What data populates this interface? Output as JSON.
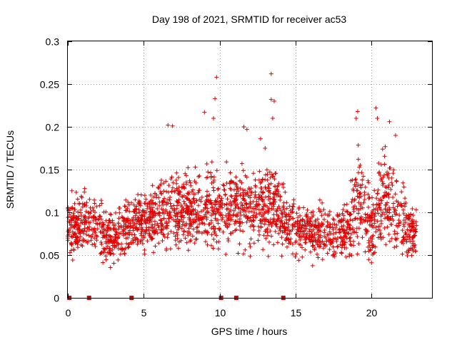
{
  "chart_data": {
    "type": "scatter",
    "title": "Day 198 of 2021, SRMTID for receiver ac53",
    "xlabel": "GPS time / hours",
    "ylabel": "SRMTID / TECUs",
    "xlim": [
      0,
      24
    ],
    "ylim": [
      0,
      0.3
    ],
    "x_ticks": [
      0,
      5,
      10,
      15,
      20
    ],
    "y_ticks": [
      0,
      0.05,
      0.1,
      0.15,
      0.2,
      0.25,
      0.3
    ],
    "x_tick_labels": [
      "0",
      "5",
      "10",
      "15",
      "20"
    ],
    "y_tick_labels": [
      "0",
      "0.05",
      "0.1",
      "0.15",
      "0.2",
      "0.25",
      "0.3"
    ],
    "grid": true,
    "marker": "plus",
    "series_color": "#e00000",
    "envelope": [
      {
        "x": 0.0,
        "low": 0.035,
        "high": 0.13
      },
      {
        "x": 1.0,
        "low": 0.04,
        "high": 0.135
      },
      {
        "x": 2.0,
        "low": 0.035,
        "high": 0.13
      },
      {
        "x": 2.5,
        "low": 0.025,
        "high": 0.11
      },
      {
        "x": 3.5,
        "low": 0.03,
        "high": 0.12
      },
      {
        "x": 4.5,
        "low": 0.04,
        "high": 0.14
      },
      {
        "x": 6.0,
        "low": 0.04,
        "high": 0.15
      },
      {
        "x": 7.0,
        "low": 0.04,
        "high": 0.165
      },
      {
        "x": 8.0,
        "low": 0.04,
        "high": 0.16
      },
      {
        "x": 9.5,
        "low": 0.035,
        "high": 0.18
      },
      {
        "x": 11.0,
        "low": 0.04,
        "high": 0.17
      },
      {
        "x": 12.5,
        "low": 0.04,
        "high": 0.16
      },
      {
        "x": 13.5,
        "low": 0.045,
        "high": 0.18
      },
      {
        "x": 14.5,
        "low": 0.04,
        "high": 0.13
      },
      {
        "x": 16.0,
        "low": 0.035,
        "high": 0.12
      },
      {
        "x": 17.5,
        "low": 0.035,
        "high": 0.12
      },
      {
        "x": 18.5,
        "low": 0.025,
        "high": 0.14
      },
      {
        "x": 19.2,
        "low": 0.03,
        "high": 0.2
      },
      {
        "x": 20.0,
        "low": 0.025,
        "high": 0.13
      },
      {
        "x": 20.5,
        "low": 0.035,
        "high": 0.19
      },
      {
        "x": 21.5,
        "low": 0.04,
        "high": 0.18
      },
      {
        "x": 22.5,
        "low": 0.035,
        "high": 0.12
      },
      {
        "x": 23.0,
        "low": 0.03,
        "high": 0.12
      }
    ],
    "outliers": [
      {
        "x": 9.8,
        "y": 0.258
      },
      {
        "x": 9.7,
        "y": 0.233
      },
      {
        "x": 13.4,
        "y": 0.262
      },
      {
        "x": 13.4,
        "y": 0.232
      },
      {
        "x": 13.6,
        "y": 0.23
      },
      {
        "x": 13.5,
        "y": 0.21
      },
      {
        "x": 6.6,
        "y": 0.202
      },
      {
        "x": 6.9,
        "y": 0.201
      },
      {
        "x": 9.0,
        "y": 0.217
      },
      {
        "x": 9.6,
        "y": 0.21
      },
      {
        "x": 11.6,
        "y": 0.2
      },
      {
        "x": 11.8,
        "y": 0.197
      },
      {
        "x": 19.1,
        "y": 0.218
      },
      {
        "x": 19.0,
        "y": 0.21
      },
      {
        "x": 20.3,
        "y": 0.222
      },
      {
        "x": 20.4,
        "y": 0.21
      },
      {
        "x": 21.2,
        "y": 0.206
      },
      {
        "x": 21.6,
        "y": 0.19
      },
      {
        "x": 12.7,
        "y": 0.186
      },
      {
        "x": 13.0,
        "y": 0.175
      }
    ],
    "zero_markers": [
      0.1,
      1.4,
      4.2,
      10.1,
      11.1,
      14.2
    ],
    "n_points": 2200
  }
}
